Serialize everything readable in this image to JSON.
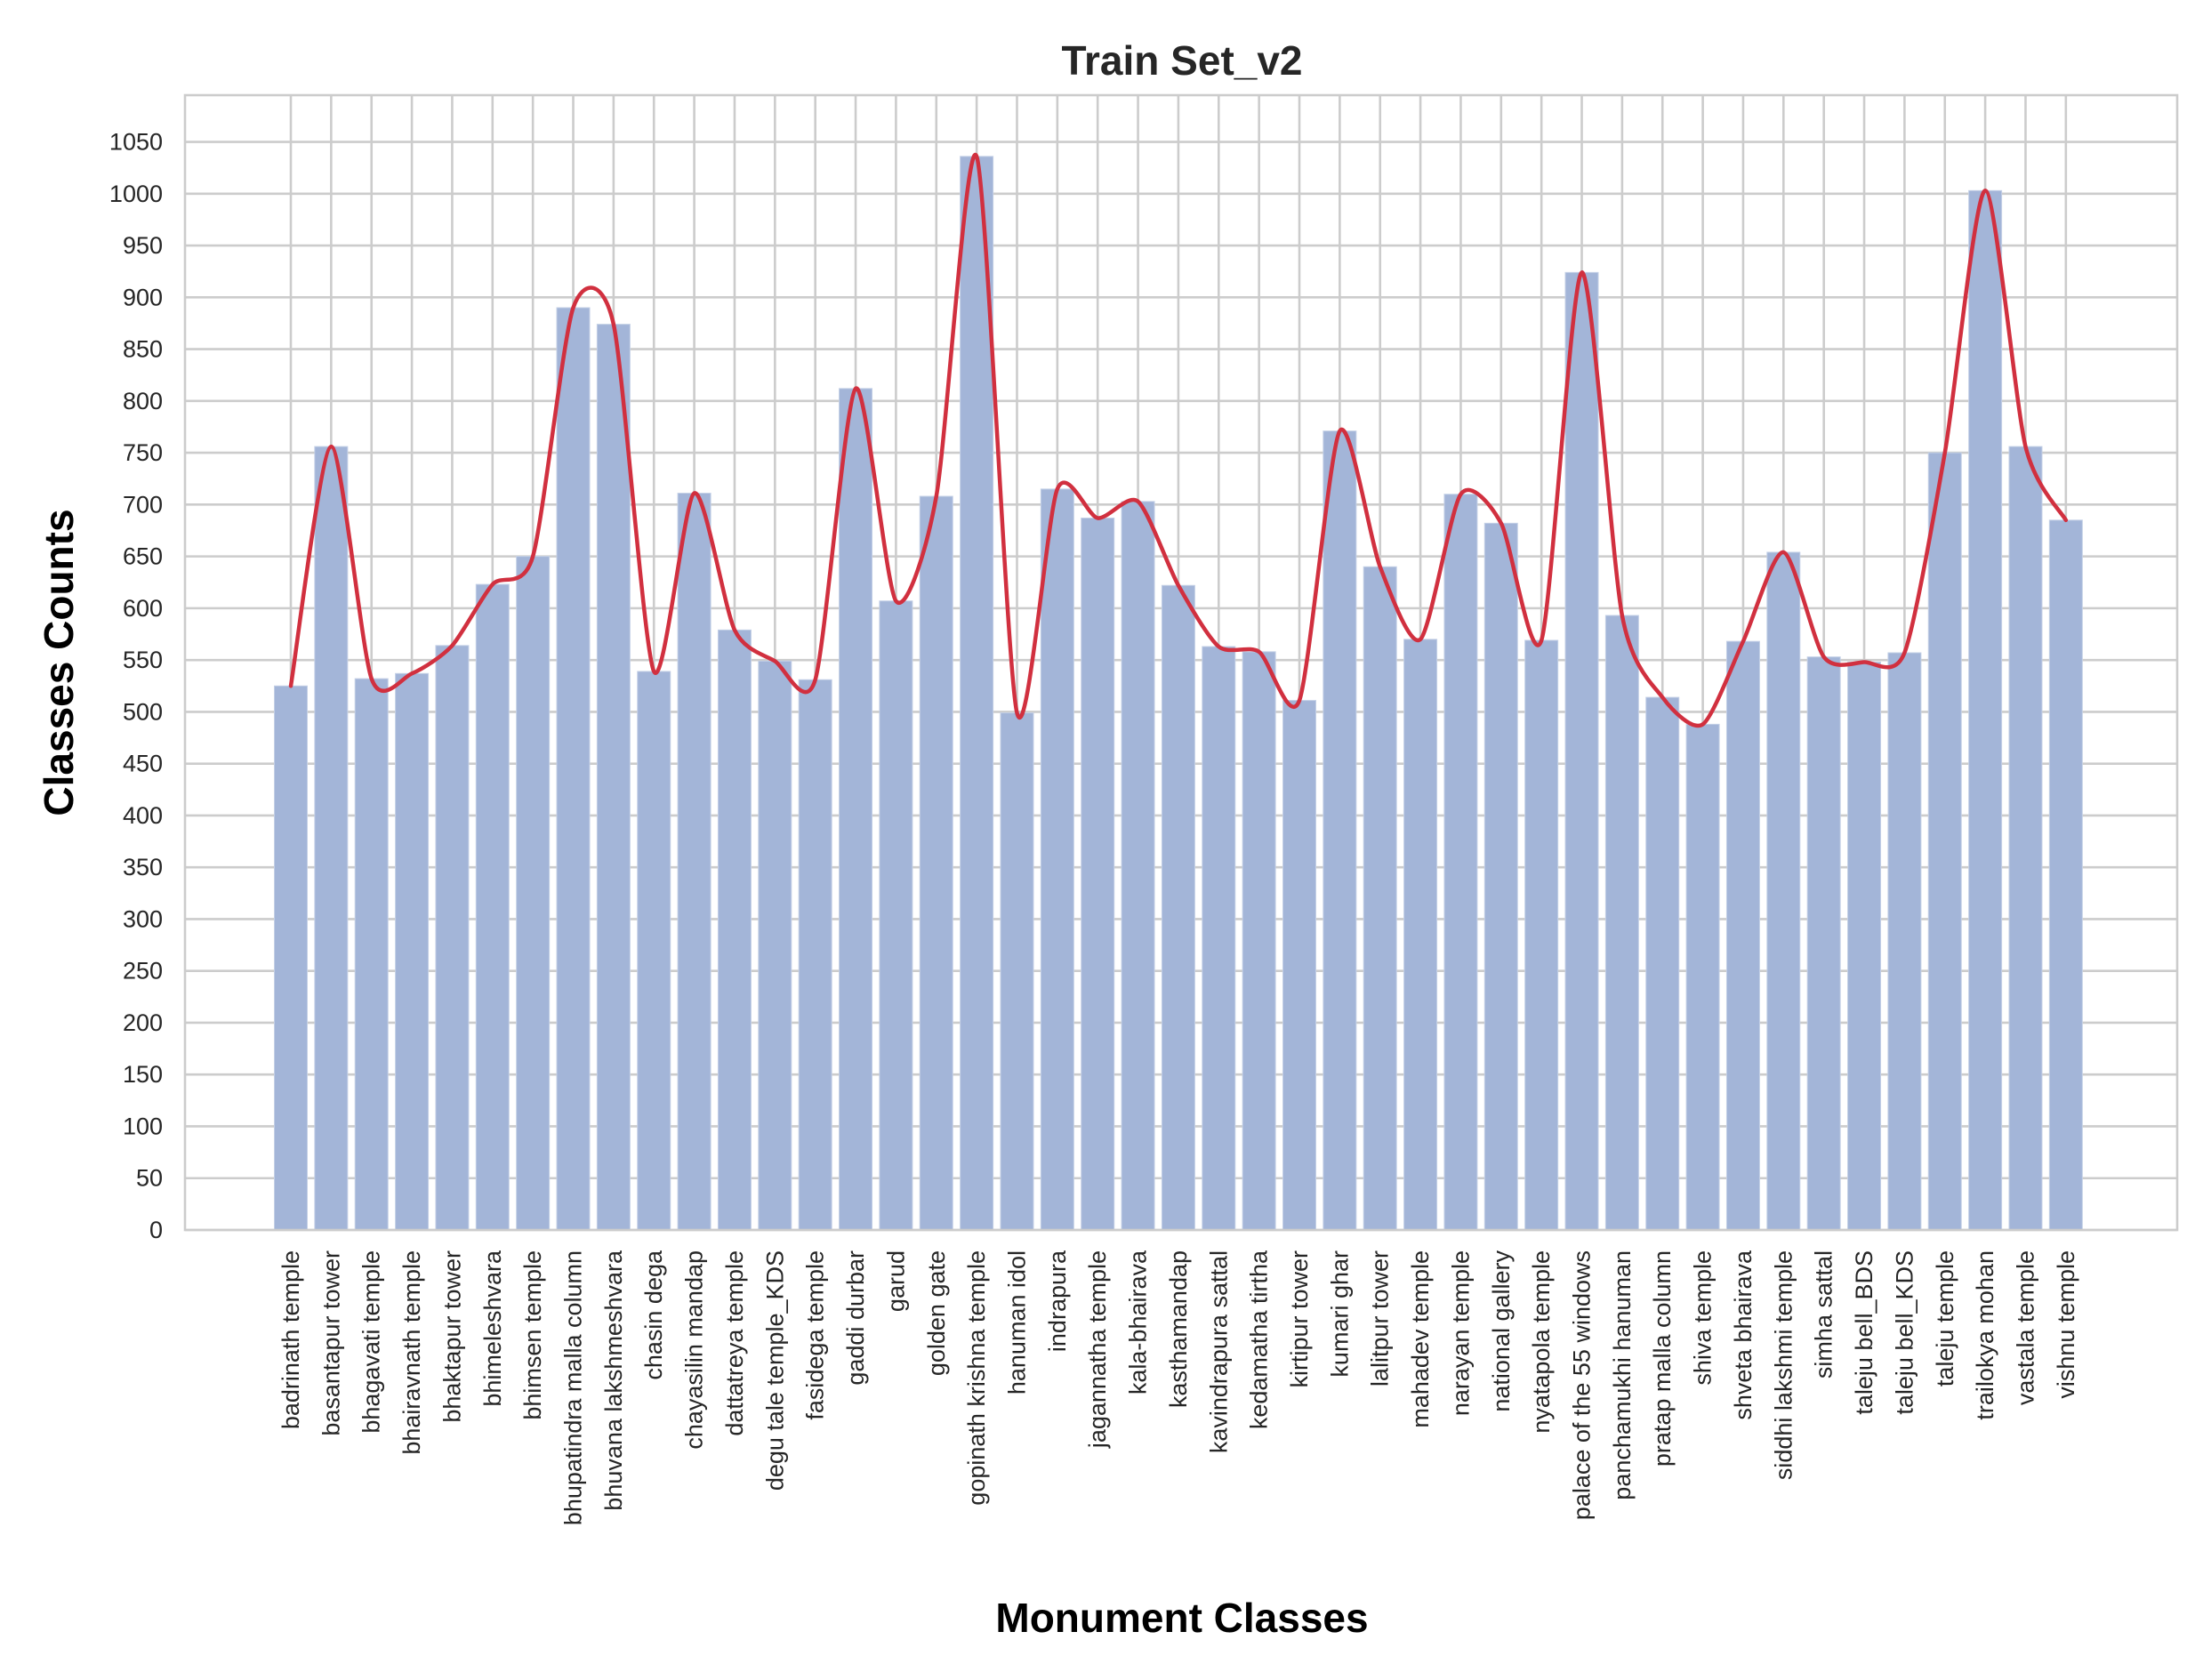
{
  "chart_data": {
    "type": "bar",
    "title": "Train Set_v2",
    "xlabel": "Monument Classes",
    "ylabel": "Classes Counts",
    "ylim": [
      0,
      1100
    ],
    "yticks": [
      0,
      50,
      100,
      150,
      200,
      250,
      300,
      350,
      400,
      450,
      500,
      550,
      600,
      650,
      700,
      750,
      800,
      850,
      900,
      950,
      1000,
      1050
    ],
    "grid": true,
    "categories": [
      "badrinath temple",
      "basantapur tower",
      "bhagavati temple",
      "bhairavnath temple",
      "bhaktapur tower",
      "bhimeleshvara",
      "bhimsen temple",
      "bhupatindra malla column",
      "bhuvana lakshmeshvara",
      "chasin dega",
      "chayasilin mandap",
      "dattatreya temple",
      "degu tale temple_KDS",
      "fasidega temple",
      "gaddi durbar",
      "garud",
      "golden gate",
      "gopinath krishna temple",
      "hanuman idol",
      "indrapura",
      "jagannatha temple",
      "kala-bhairava",
      "kasthamandap",
      "kavindrapura sattal",
      "kedamatha tirtha",
      "kirtipur tower",
      "kumari ghar",
      "lalitpur tower",
      "mahadev temple",
      "narayan temple",
      "national gallery",
      "nyatapola temple",
      "palace of the 55 windows",
      "panchamukhi hanuman",
      "pratap malla column",
      "shiva temple",
      "shveta bhairava",
      "siddhi lakshmi temple",
      "simha sattal",
      "taleju bell_BDS",
      "taleju bell_KDS",
      "taleju temple",
      "trailokya mohan",
      "vastala temple",
      "vishnu temple"
    ],
    "values": [
      525,
      756,
      532,
      537,
      564,
      623,
      650,
      890,
      874,
      539,
      711,
      579,
      549,
      531,
      812,
      607,
      708,
      1036,
      499,
      715,
      687,
      703,
      622,
      563,
      558,
      511,
      771,
      640,
      570,
      710,
      682,
      569,
      924,
      593,
      514,
      488,
      568,
      654,
      553,
      548,
      557,
      750,
      1003,
      756,
      685
    ],
    "bar_color": "#a3b5d8",
    "trend_color": "#d1303f"
  }
}
